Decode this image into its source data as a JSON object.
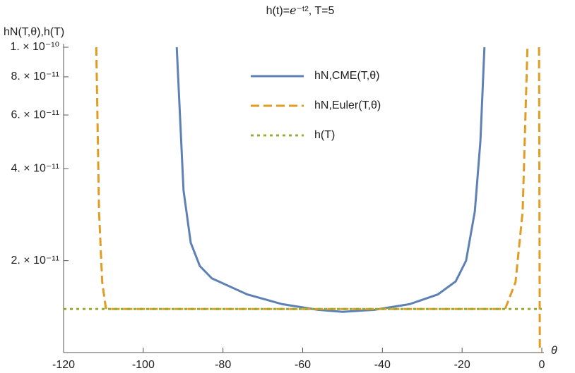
{
  "chart_data": {
    "type": "line",
    "title": "h(t)=ℯ⁻ᵗ², T=5",
    "y_label": "hN(T,θ),h(T)",
    "x_label": "θ",
    "y_scale": "log",
    "xlim": [
      -120,
      0
    ],
    "ylim": [
      1e-11,
      1e-10
    ],
    "xticks": [
      -120,
      -100,
      -80,
      -60,
      -40,
      -20,
      0
    ],
    "yticks": [
      {
        "value": 1e-10,
        "label": "1. × 10⁻¹⁰"
      },
      {
        "value": 8e-11,
        "label": "8. × 10⁻¹¹"
      },
      {
        "value": 6e-11,
        "label": "6. × 10⁻¹¹"
      },
      {
        "value": 4e-11,
        "label": "4. × 10⁻¹¹"
      },
      {
        "value": 2e-11,
        "label": "2. × 10⁻¹¹"
      }
    ],
    "legend": "top-center",
    "series": [
      {
        "name": "hN,CME(T,θ)",
        "color": "#5e81b5",
        "style": "solid",
        "x": [
          -91.6,
          -89.9,
          -88.1,
          -85.8,
          -82.8,
          -73.9,
          -65.1,
          -56.2,
          -50.0,
          -42.0,
          -33.2,
          -26.1,
          -21.6,
          -19.0,
          -16.8,
          -15.4,
          -14.4
        ],
        "values": [
          1e-10,
          3.4e-11,
          2.29e-11,
          1.92e-11,
          1.75e-11,
          1.55e-11,
          1.44e-11,
          1.38e-11,
          1.36e-11,
          1.38e-11,
          1.44e-11,
          1.55e-11,
          1.71e-11,
          2e-11,
          2.9e-11,
          4.93e-11,
          1e-10
        ]
      },
      {
        "name": "hN,Euler(T,θ)",
        "color": "#e19c24",
        "style": "dashed",
        "x": [
          -111.8,
          -111.1,
          -110.3,
          -109.4,
          -108.5,
          -9.2,
          -6.6,
          -4.8,
          -3.6,
          -2.0,
          -0.7,
          -0.5
        ],
        "values": [
          1e-10,
          2.9e-11,
          1.7e-11,
          1.4e-11,
          1.389e-11,
          1.389e-11,
          1.7e-11,
          2.9e-11,
          1e-10,
          null,
          1e-10,
          1e-11
        ]
      },
      {
        "name": "h(T)",
        "color": "#8fb032",
        "style": "dotted",
        "x": [
          -120,
          0
        ],
        "values": [
          1.3888e-11,
          1.3888e-11
        ]
      }
    ]
  }
}
